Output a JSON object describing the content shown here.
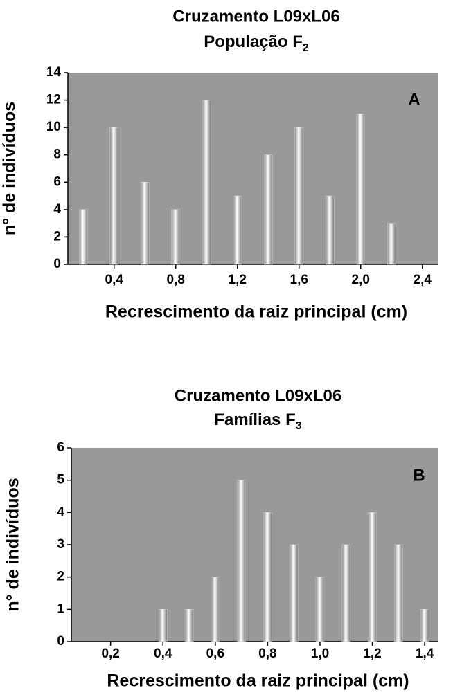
{
  "chart_data": [
    {
      "type": "bar",
      "title": "Cruzamento L09xL06",
      "subtitle": "População F",
      "subtitle_subscript": "2",
      "annotation": "A",
      "x_label": "Recrescimento da raiz principal (cm)",
      "y_label": "n° de indivíduos",
      "x": [
        0.2,
        0.4,
        0.6,
        0.8,
        1.0,
        1.2,
        1.4,
        1.6,
        1.8,
        2.0,
        2.2
      ],
      "values": [
        4,
        10,
        6,
        4,
        12,
        5,
        8,
        10,
        5,
        11,
        3
      ],
      "xlim": [
        0.1,
        2.5
      ],
      "ylim": [
        0,
        14
      ],
      "xticks": [
        {
          "value": 0.4,
          "label": "0,4"
        },
        {
          "value": 0.8,
          "label": "0,8"
        },
        {
          "value": 1.2,
          "label": "1,2"
        },
        {
          "value": 1.6,
          "label": "1,6"
        },
        {
          "value": 2.0,
          "label": "2,0"
        },
        {
          "value": 2.4,
          "label": "2,4"
        }
      ],
      "yticks": [
        0,
        2,
        4,
        6,
        8,
        10,
        12,
        14
      ],
      "color": "#ffffff",
      "background": "#999999"
    },
    {
      "type": "bar",
      "title": "Cruzamento L09xL06",
      "subtitle": "Famílias F",
      "subtitle_subscript": "3",
      "annotation": "B",
      "x_label": "Recrescimento da raiz principal (cm)",
      "y_label": "n° de indivíduos",
      "x": [
        0.4,
        0.5,
        0.6,
        0.7,
        0.8,
        0.9,
        1.0,
        1.1,
        1.2,
        1.3,
        1.4
      ],
      "values": [
        1,
        1,
        2,
        5,
        4,
        3,
        2,
        3,
        4,
        3,
        1
      ],
      "xlim": [
        0.05,
        1.45
      ],
      "ylim": [
        0,
        6
      ],
      "xticks": [
        {
          "value": 0.2,
          "label": "0,2"
        },
        {
          "value": 0.4,
          "label": "0,4"
        },
        {
          "value": 0.6,
          "label": "0,6"
        },
        {
          "value": 0.8,
          "label": "0,8"
        },
        {
          "value": 1.0,
          "label": "1,0"
        },
        {
          "value": 1.2,
          "label": "1,2"
        },
        {
          "value": 1.4,
          "label": "1,4"
        }
      ],
      "yticks": [
        0,
        1,
        2,
        3,
        4,
        5,
        6
      ],
      "color": "#ffffff",
      "background": "#999999"
    }
  ]
}
